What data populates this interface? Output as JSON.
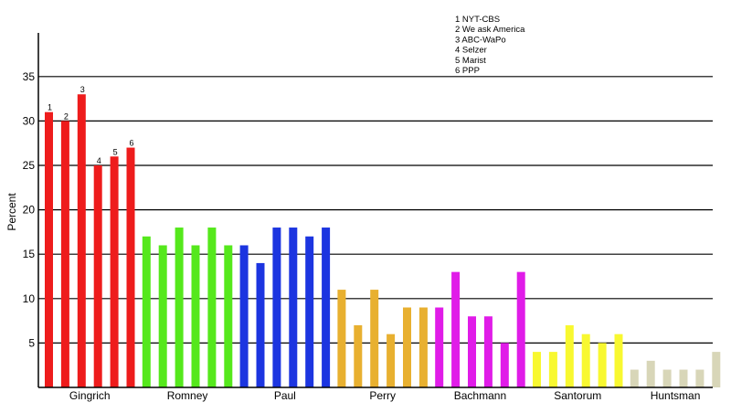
{
  "chart_data": {
    "type": "bar",
    "xlabel": "",
    "ylabel": "Percent",
    "ylim": [
      0,
      40
    ],
    "yticks": [
      5,
      10,
      15,
      20,
      25,
      30,
      35
    ],
    "grid": "horizontal",
    "legend_position": "top-right",
    "legend": [
      "1 NYT-CBS",
      "2 We ask America",
      "3 ABC-WaPo",
      "4 Selzer",
      "5 Marist",
      "6 PPP"
    ],
    "bar_number_labels": [
      "1",
      "2",
      "3",
      "4",
      "5",
      "6"
    ],
    "categories": [
      "Gingrich",
      "Romney",
      "Paul",
      "Perry",
      "Bachmann",
      "Santorum",
      "Huntsman"
    ],
    "colors": [
      "#ee1c1c",
      "#55e81c",
      "#1c35e0",
      "#e8b030",
      "#e01ce8",
      "#f8f830",
      "#d8d6b8"
    ],
    "values": [
      [
        31,
        30,
        33,
        25,
        26,
        27
      ],
      [
        17,
        16,
        18,
        16,
        18,
        16
      ],
      [
        16,
        14,
        18,
        18,
        17,
        18
      ],
      [
        11,
        7,
        11,
        6,
        9,
        9
      ],
      [
        9,
        13,
        8,
        8,
        5,
        13
      ],
      [
        4,
        4,
        7,
        6,
        5,
        6
      ],
      [
        2,
        3,
        2,
        2,
        2,
        4
      ]
    ]
  }
}
